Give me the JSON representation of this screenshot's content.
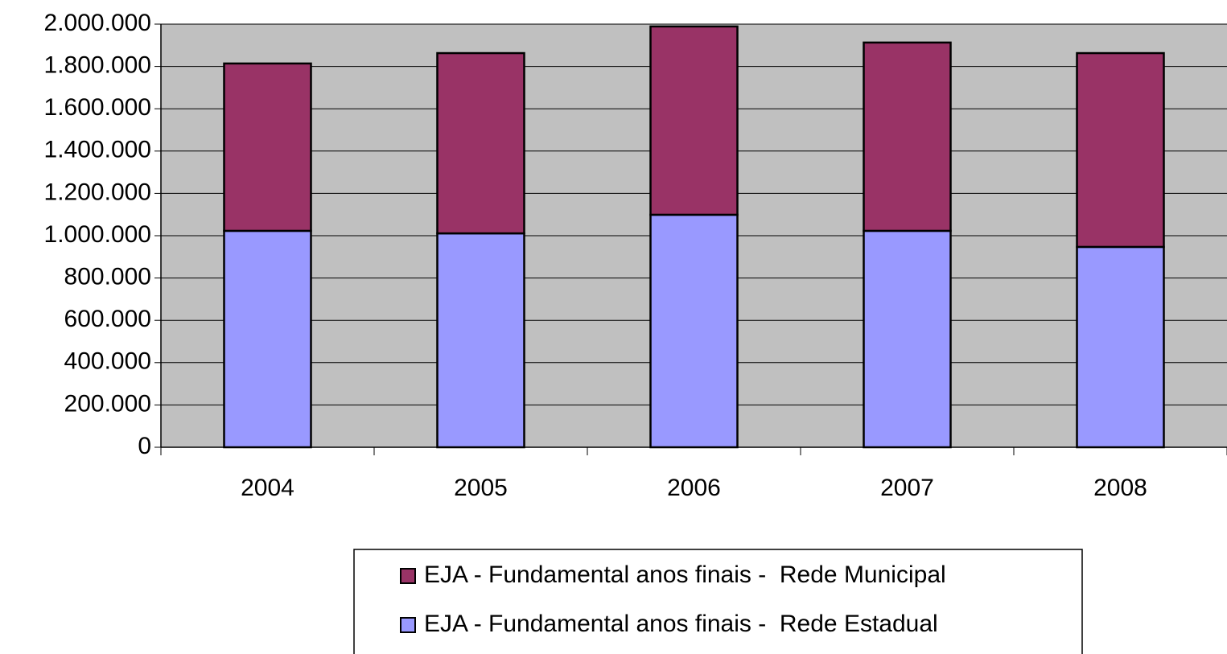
{
  "chart_data": {
    "type": "stacked_bar",
    "categories": [
      "2004",
      "2005",
      "2006",
      "2007",
      "2008"
    ],
    "series": [
      {
        "name": "EJA - Fundamental anos finais -  Rede Estadual",
        "color": "#9999ff",
        "values": [
          1023000,
          1011000,
          1099000,
          1023000,
          947000
        ]
      },
      {
        "name": "EJA - Fundamental anos finais -  Rede Municipal",
        "color": "#993366",
        "values": [
          791000,
          852000,
          890000,
          890000,
          916000
        ]
      }
    ],
    "ylim": [
      0,
      2000000
    ],
    "yticks": [
      0,
      {
        "value": 200000,
        "label": "200.000"
      },
      {
        "value": 400000,
        "label": "400.000"
      },
      {
        "value": 600000,
        "label": "600.000"
      },
      {
        "value": 800000,
        "label": "800.000"
      },
      {
        "value": 1000000,
        "label": "1.000.000"
      },
      {
        "value": 1200000,
        "label": "1.200.000"
      },
      {
        "value": 1400000,
        "label": "1.400.000"
      },
      {
        "value": 1600000,
        "label": "1.600.000"
      },
      {
        "value": 1800000,
        "label": "1.800.000"
      },
      {
        "value": 2000000,
        "label": "2.000.000"
      }
    ],
    "grid": true,
    "legend": "bottom"
  }
}
